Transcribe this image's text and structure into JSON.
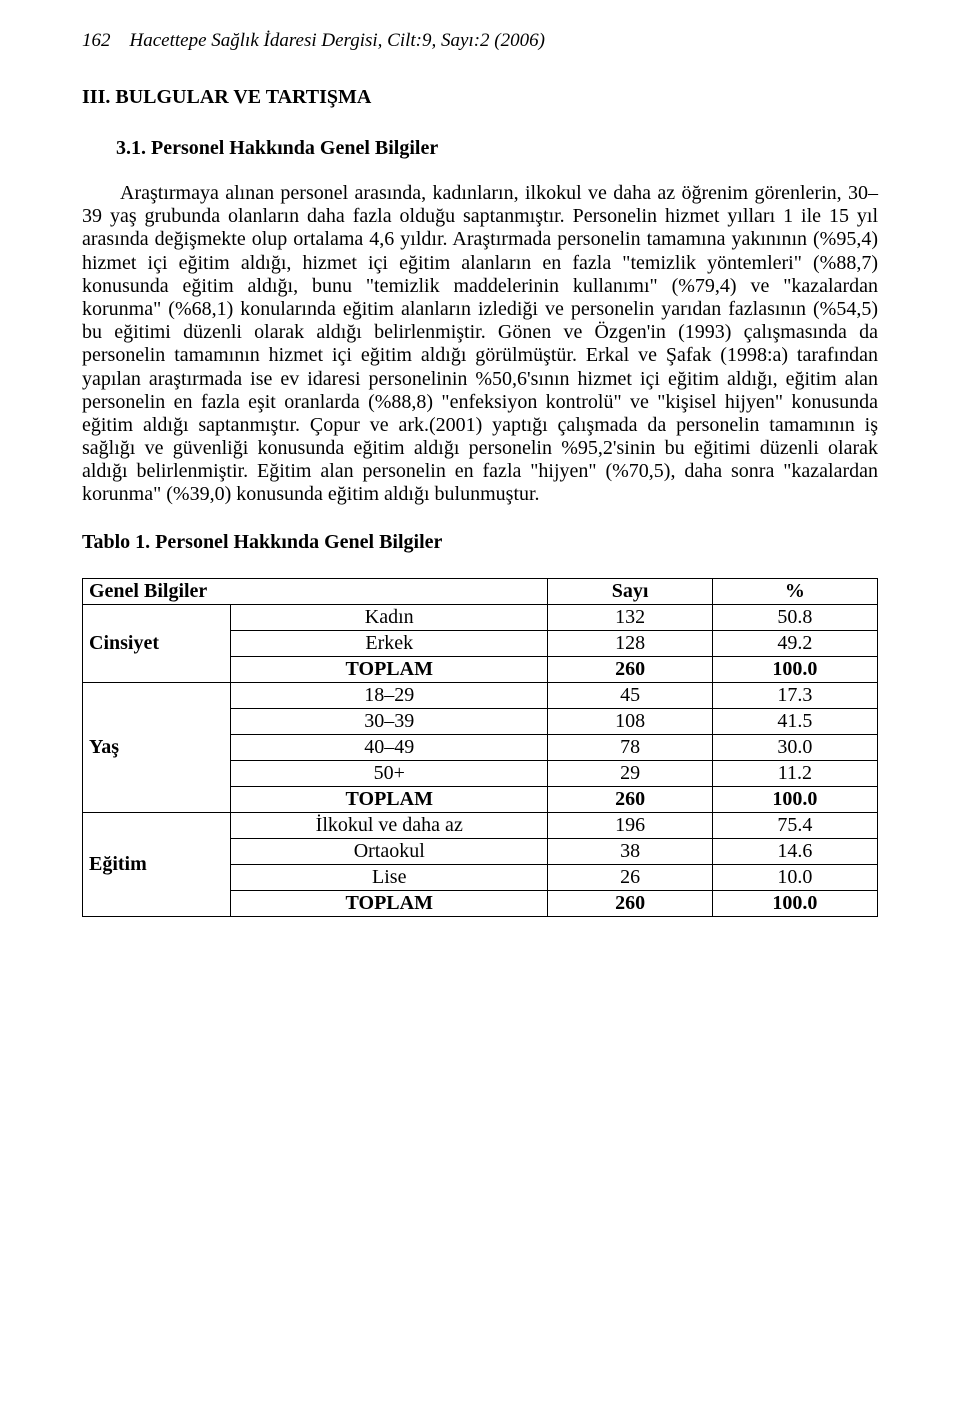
{
  "header": {
    "page_number": "162",
    "journal_line": "Hacettepe Sağlık İdaresi Dergisi, Cilt:9, Sayı:2 (2006)"
  },
  "section": {
    "heading": "III. BULGULAR VE TARTIŞMA",
    "subheading": "3.1. Personel Hakkında Genel Bilgiler"
  },
  "paragraph": "Araştırmaya alınan personel arasında, kadınların, ilkokul ve daha az öğrenim görenlerin, 30–39 yaş grubunda olanların daha fazla olduğu saptanmıştır. Personelin hizmet yılları 1 ile 15 yıl arasında değişmekte olup ortalama 4,6 yıldır. Araştırmada personelin tamamına yakınının (%95,4) hizmet içi eğitim aldığı, hizmet içi eğitim alanların en fazla \"temizlik yöntemleri\" (%88,7) konusunda eğitim aldığı, bunu \"temizlik maddelerinin kullanımı\" (%79,4) ve \"kazalardan korunma\" (%68,1) konularında eğitim alanların izlediği ve personelin yarıdan fazlasının (%54,5) bu eğitimi düzenli olarak aldığı belirlenmiştir. Gönen ve Özgen'in (1993) çalışmasında da personelin tamamının hizmet içi eğitim aldığı görülmüştür. Erkal ve Şafak (1998:a) tarafından yapılan araştırmada ise ev idaresi personelinin %50,6'sının hizmet içi eğitim aldığı, eğitim alan personelin en fazla eşit oranlarda (%88,8) \"enfeksiyon kontrolü\" ve \"kişisel hijyen\" konusunda eğitim aldığı saptanmıştır. Çopur ve ark.(2001) yaptığı çalışmada da personelin tamamının iş sağlığı ve güvenliği konusunda eğitim aldığı personelin %95,2'sinin bu eğitimi düzenli olarak aldığı belirlenmiştir. Eğitim alan personelin en fazla \"hijyen\" (%70,5), daha sonra \"kazalardan korunma\" (%39,0) konusunda eğitim aldığı bulunmuştur.",
  "table": {
    "title": "Tablo 1. Personel Hakkında Genel Bilgiler",
    "head": {
      "c1": "Genel Bilgiler",
      "c2": "Sayı",
      "c3": "%"
    },
    "groups": [
      {
        "label": "Cinsiyet",
        "rows": [
          {
            "cat": "Kadın",
            "n": "132",
            "pct": "50.8",
            "bold": false
          },
          {
            "cat": "Erkek",
            "n": "128",
            "pct": "49.2",
            "bold": false
          },
          {
            "cat": "TOPLAM",
            "n": "260",
            "pct": "100.0",
            "bold": true
          }
        ]
      },
      {
        "label": "Yaş",
        "rows": [
          {
            "cat": "18–29",
            "n": "45",
            "pct": "17.3",
            "bold": false
          },
          {
            "cat": "30–39",
            "n": "108",
            "pct": "41.5",
            "bold": false
          },
          {
            "cat": "40–49",
            "n": "78",
            "pct": "30.0",
            "bold": false
          },
          {
            "cat": "50+",
            "n": "29",
            "pct": "11.2",
            "bold": false
          },
          {
            "cat": "TOPLAM",
            "n": "260",
            "pct": "100.0",
            "bold": true
          }
        ]
      },
      {
        "label": "Eğitim",
        "rows": [
          {
            "cat": "İlkokul ve daha az",
            "n": "196",
            "pct": "75.4",
            "bold": false
          },
          {
            "cat": "Ortaokul",
            "n": "38",
            "pct": "14.6",
            "bold": false
          },
          {
            "cat": "Lise",
            "n": "26",
            "pct": "10.0",
            "bold": false
          },
          {
            "cat": "TOPLAM",
            "n": "260",
            "pct": "100.0",
            "bold": true
          }
        ]
      }
    ]
  }
}
